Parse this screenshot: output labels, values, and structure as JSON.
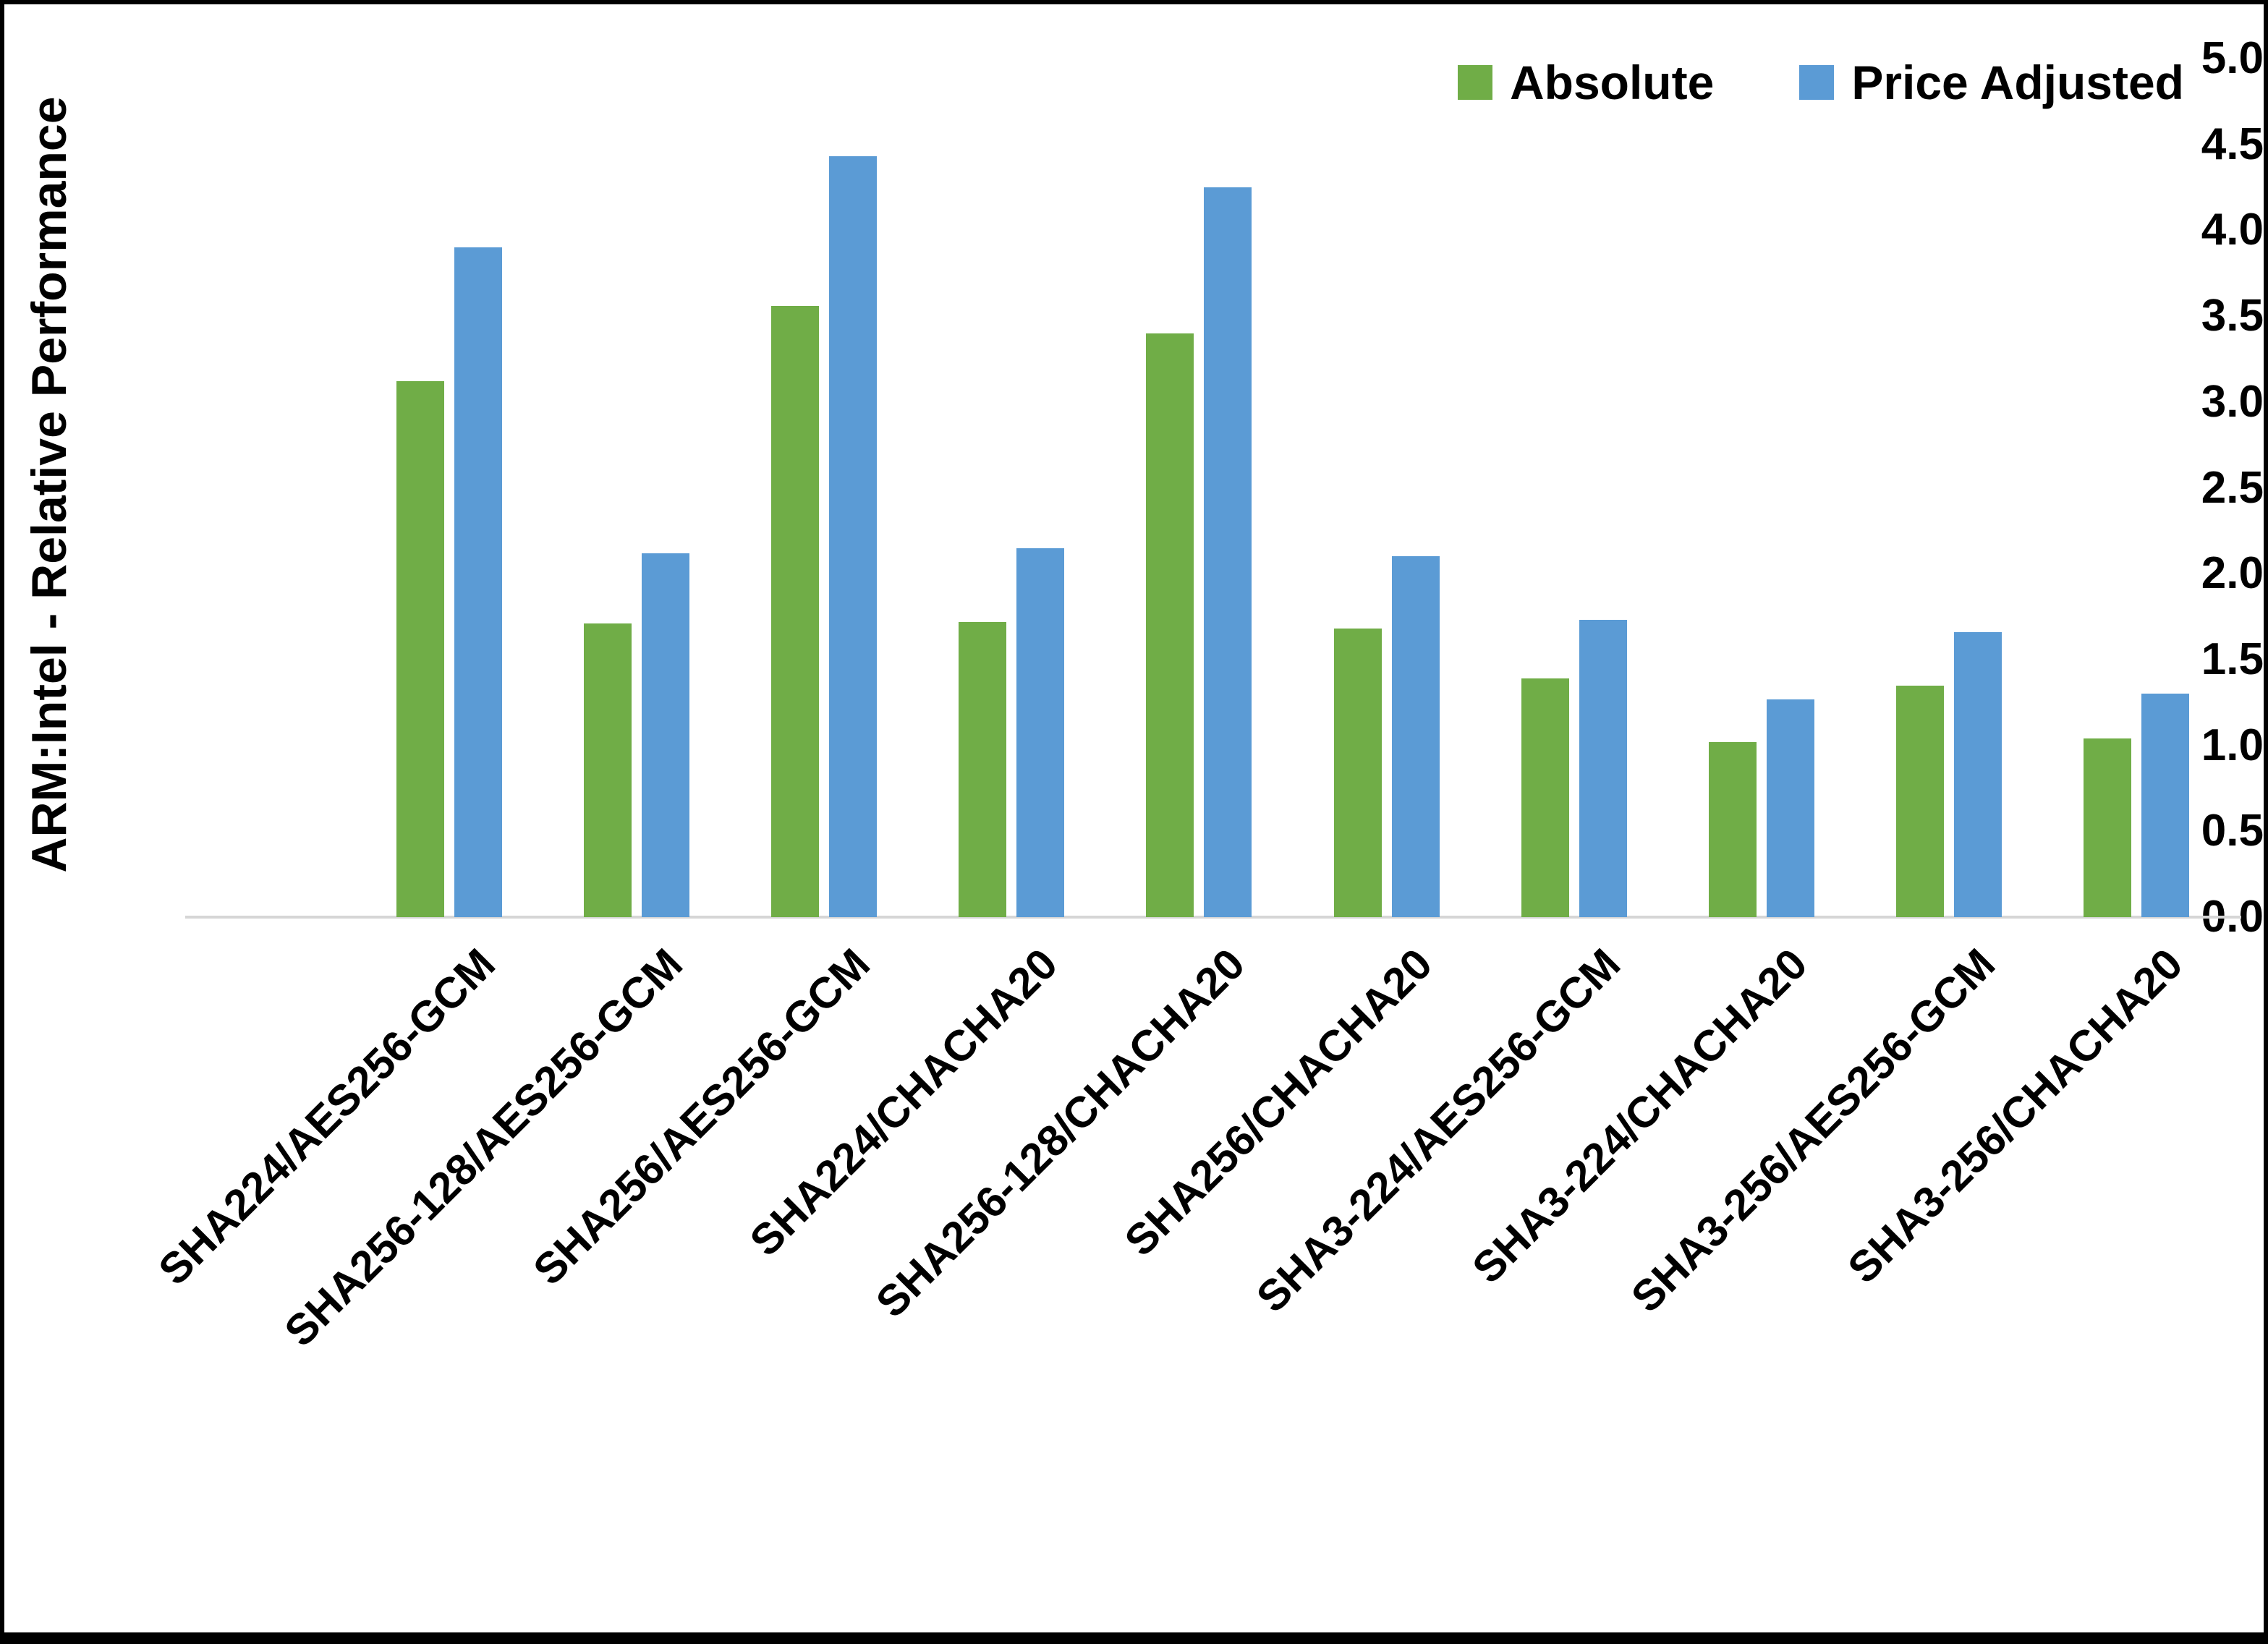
{
  "chart_data": {
    "type": "bar",
    "title": "",
    "xlabel": "",
    "ylabel": "ARM:Intel - Relative Performance",
    "ylim": [
      0,
      5
    ],
    "ytick_step": 0.5,
    "grid": false,
    "legend_position": "top-right",
    "axis_line_color": "#d6d6d6",
    "categories": [
      "SHA224/AES256-GCM",
      "SHA256-128/AES256-GCM",
      "SHA256/AES256-GCM",
      "SHA224/CHACHA20",
      "SHA256-128/CHACHA20",
      "SHA256/CHACHA20",
      "SHA3-224/AES256-GCM",
      "SHA3-224/CHACHA20",
      "SHA3-256/AES256-GCM",
      "SHA3-256/CHACHA20"
    ],
    "series": [
      {
        "name": "Absolute",
        "color": "#70AD47",
        "values": [
          3.12,
          1.71,
          3.56,
          1.72,
          3.4,
          1.68,
          1.39,
          1.02,
          1.35,
          1.04
        ]
      },
      {
        "name": "Price Adjusted",
        "color": "#5B9BD5",
        "values": [
          3.9,
          2.12,
          4.43,
          2.15,
          4.25,
          2.1,
          1.73,
          1.27,
          1.66,
          1.3
        ]
      }
    ]
  }
}
